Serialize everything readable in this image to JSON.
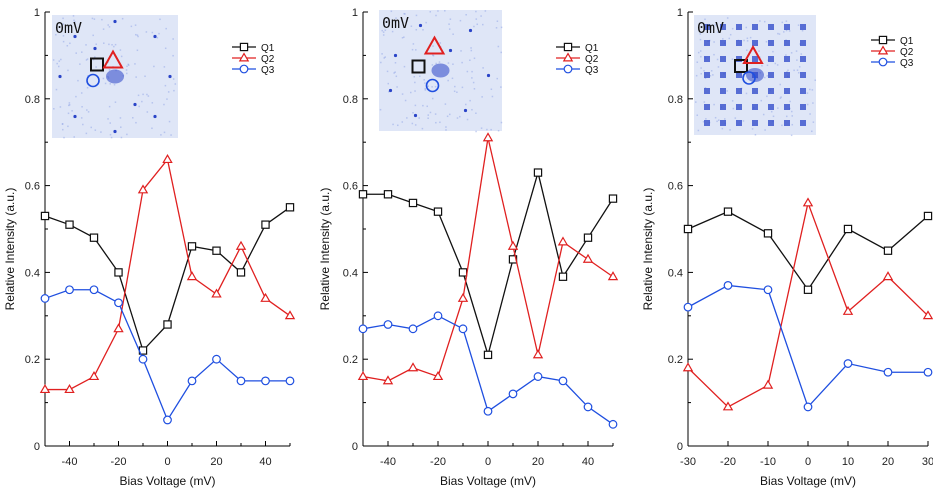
{
  "colors": {
    "Q1": "#111111",
    "Q2": "#e02020",
    "Q3": "#1f4fe0",
    "inset_bg": "#dfe6f7",
    "inset_dot": "#2a44c8"
  },
  "chart_data": [
    {
      "type": "line",
      "xlabel": "Bias Voltage (mV)",
      "ylabel": "Relative Intensity (a.u.)",
      "xlim": [
        -50,
        50
      ],
      "ylim": [
        0,
        1.0
      ],
      "xticks": [
        -40,
        -20,
        0,
        20,
        40
      ],
      "yticks": [
        0.0,
        0.2,
        0.4,
        0.6,
        0.8,
        1.0
      ],
      "inset_label": "0mV",
      "legend_position": "top-right",
      "x": [
        -50,
        -40,
        -30,
        -20,
        -10,
        0,
        10,
        20,
        30,
        40,
        50
      ],
      "series": [
        {
          "name": "Q1",
          "marker": "square",
          "values": [
            0.53,
            0.51,
            0.48,
            0.4,
            0.22,
            0.28,
            0.46,
            0.45,
            0.4,
            0.51,
            0.55
          ]
        },
        {
          "name": "Q2",
          "marker": "triangle",
          "values": [
            0.13,
            0.13,
            0.16,
            0.27,
            0.59,
            0.66,
            0.39,
            0.35,
            0.46,
            0.34,
            0.3
          ]
        },
        {
          "name": "Q3",
          "marker": "circle",
          "values": [
            0.34,
            0.36,
            0.36,
            0.33,
            0.2,
            0.06,
            0.15,
            0.2,
            0.15,
            0.15,
            0.15
          ]
        }
      ]
    },
    {
      "type": "line",
      "xlabel": "Bias Voltage (mV)",
      "ylabel": "Relative Intensity (a.u.)",
      "xlim": [
        -50,
        50
      ],
      "ylim": [
        0,
        1.0
      ],
      "xticks": [
        -40,
        -20,
        0,
        20,
        40
      ],
      "yticks": [
        0.0,
        0.2,
        0.4,
        0.6,
        0.8,
        1.0
      ],
      "inset_label": "0mV",
      "legend_position": "top-right",
      "x": [
        -50,
        -40,
        -30,
        -20,
        -10,
        0,
        10,
        20,
        30,
        40,
        50
      ],
      "series": [
        {
          "name": "Q1",
          "marker": "square",
          "values": [
            0.58,
            0.58,
            0.56,
            0.54,
            0.4,
            0.21,
            0.43,
            0.63,
            0.39,
            0.48,
            0.57
          ]
        },
        {
          "name": "Q2",
          "marker": "triangle",
          "values": [
            0.16,
            0.15,
            0.18,
            0.16,
            0.34,
            0.71,
            0.46,
            0.21,
            0.47,
            0.43,
            0.39
          ]
        },
        {
          "name": "Q3",
          "marker": "circle",
          "values": [
            0.27,
            0.28,
            0.27,
            0.3,
            0.27,
            0.08,
            0.12,
            0.16,
            0.15,
            0.09,
            0.05
          ]
        }
      ]
    },
    {
      "type": "line",
      "xlabel": "Bias Voltage (mV)",
      "ylabel": "Relative Intensity (a.u.)",
      "xlim": [
        -30,
        30
      ],
      "ylim": [
        0,
        1.0
      ],
      "xticks": [
        -30,
        -20,
        -10,
        0,
        10,
        20,
        30
      ],
      "yticks": [
        0.0,
        0.2,
        0.4,
        0.6,
        0.8,
        1.0
      ],
      "inset_label": "0mV",
      "legend_position": "top-right",
      "x": [
        -30,
        -20,
        -10,
        0,
        10,
        20,
        30
      ],
      "series": [
        {
          "name": "Q1",
          "marker": "square",
          "values": [
            0.5,
            0.54,
            0.49,
            0.36,
            0.5,
            0.45,
            0.53
          ]
        },
        {
          "name": "Q2",
          "marker": "triangle",
          "values": [
            0.18,
            0.09,
            0.14,
            0.56,
            0.31,
            0.39,
            0.3
          ]
        },
        {
          "name": "Q3",
          "marker": "circle",
          "values": [
            0.32,
            0.37,
            0.36,
            0.09,
            0.19,
            0.17,
            0.17
          ]
        }
      ]
    }
  ]
}
